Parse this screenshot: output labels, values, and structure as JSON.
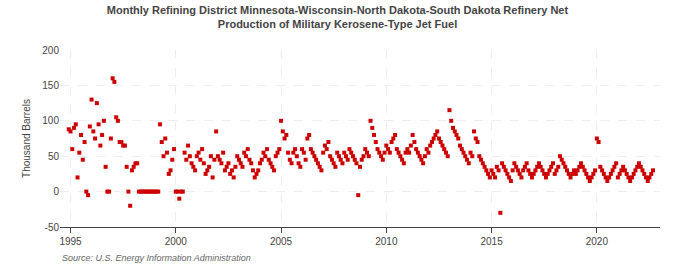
{
  "chart_data": {
    "type": "scatter",
    "title": "Monthly Refining District Minnesota-Wisconsin-North Dakota-South Dakota Refinery Net\nProduction of Military Kerosene-Type Jet Fuel",
    "ylabel": "Thousand Barrels",
    "annotations": [
      "Source: U.S. Energy Information Administration"
    ],
    "color": "#cc0000",
    "marker": "square",
    "grid": true,
    "xlim": [
      1994.5,
      2023.0
    ],
    "xticks": [
      1995,
      2000,
      2005,
      2010,
      2015,
      2020
    ],
    "ylim": [
      -50,
      200
    ],
    "yticks": [
      -50,
      0,
      50,
      100,
      150,
      200
    ],
    "x": [
      1994.917,
      1995.0,
      1995.083,
      1995.167,
      1995.25,
      1995.333,
      1995.417,
      1995.5,
      1995.583,
      1995.667,
      1995.75,
      1995.833,
      1995.917,
      1996.0,
      1996.083,
      1996.167,
      1996.25,
      1996.333,
      1996.417,
      1996.5,
      1996.583,
      1996.667,
      1996.75,
      1996.833,
      1996.917,
      1997.0,
      1997.083,
      1997.167,
      1997.25,
      1997.333,
      1997.417,
      1997.5,
      1997.583,
      1997.667,
      1997.75,
      1997.833,
      1997.917,
      1998.0,
      1998.083,
      1998.167,
      1998.25,
      1998.333,
      1998.417,
      1998.5,
      1998.583,
      1998.667,
      1998.75,
      1998.833,
      1998.917,
      1999.0,
      1999.083,
      1999.167,
      1999.25,
      1999.333,
      1999.417,
      1999.5,
      1999.583,
      1999.667,
      1999.75,
      1999.833,
      1999.917,
      2000.0,
      2000.083,
      2000.167,
      2000.25,
      2000.333,
      2000.417,
      2000.5,
      2000.583,
      2000.667,
      2000.75,
      2000.833,
      2000.917,
      2001.0,
      2001.083,
      2001.167,
      2001.25,
      2001.333,
      2001.417,
      2001.5,
      2001.583,
      2001.667,
      2001.75,
      2001.833,
      2001.917,
      2002.0,
      2002.083,
      2002.167,
      2002.25,
      2002.333,
      2002.417,
      2002.5,
      2002.583,
      2002.667,
      2002.75,
      2002.833,
      2002.917,
      2003.0,
      2003.083,
      2003.167,
      2003.25,
      2003.333,
      2003.417,
      2003.5,
      2003.583,
      2003.667,
      2003.75,
      2003.833,
      2003.917,
      2004.0,
      2004.083,
      2004.167,
      2004.25,
      2004.333,
      2004.417,
      2004.5,
      2004.583,
      2004.667,
      2004.75,
      2004.833,
      2004.917,
      2005.0,
      2005.083,
      2005.167,
      2005.25,
      2005.333,
      2005.417,
      2005.5,
      2005.583,
      2005.667,
      2005.75,
      2005.833,
      2005.917,
      2006.0,
      2006.083,
      2006.167,
      2006.25,
      2006.333,
      2006.417,
      2006.5,
      2006.583,
      2006.667,
      2006.75,
      2006.833,
      2006.917,
      2007.0,
      2007.083,
      2007.167,
      2007.25,
      2007.333,
      2007.417,
      2007.5,
      2007.583,
      2007.667,
      2007.75,
      2007.833,
      2007.917,
      2008.0,
      2008.083,
      2008.167,
      2008.25,
      2008.333,
      2008.417,
      2008.5,
      2008.583,
      2008.667,
      2008.75,
      2008.833,
      2008.917,
      2009.0,
      2009.083,
      2009.167,
      2009.25,
      2009.333,
      2009.417,
      2009.5,
      2009.583,
      2009.667,
      2009.75,
      2009.833,
      2009.917,
      2010.0,
      2010.083,
      2010.167,
      2010.25,
      2010.333,
      2010.417,
      2010.5,
      2010.583,
      2010.667,
      2010.75,
      2010.833,
      2010.917,
      2011.0,
      2011.083,
      2011.167,
      2011.25,
      2011.333,
      2011.417,
      2011.5,
      2011.583,
      2011.667,
      2011.75,
      2011.833,
      2011.917,
      2012.0,
      2012.083,
      2012.167,
      2012.25,
      2012.333,
      2012.417,
      2012.5,
      2012.583,
      2012.667,
      2012.75,
      2012.833,
      2012.917,
      2013.0,
      2013.083,
      2013.167,
      2013.25,
      2013.333,
      2013.417,
      2013.5,
      2013.583,
      2013.667,
      2013.75,
      2013.833,
      2013.917,
      2014.0,
      2014.083,
      2014.167,
      2014.25,
      2014.333,
      2014.417,
      2014.5,
      2014.583,
      2014.667,
      2014.75,
      2014.833,
      2014.917,
      2015.0,
      2015.083,
      2015.167,
      2015.25,
      2015.333,
      2015.417,
      2015.5,
      2015.583,
      2015.667,
      2015.75,
      2015.833,
      2015.917,
      2016.0,
      2016.083,
      2016.167,
      2016.25,
      2016.333,
      2016.417,
      2016.5,
      2016.583,
      2016.667,
      2016.75,
      2016.833,
      2016.917,
      2017.0,
      2017.083,
      2017.167,
      2017.25,
      2017.333,
      2017.417,
      2017.5,
      2017.583,
      2017.667,
      2017.75,
      2017.833,
      2017.917,
      2018.0,
      2018.083,
      2018.167,
      2018.25,
      2018.333,
      2018.417,
      2018.5,
      2018.583,
      2018.667,
      2018.75,
      2018.833,
      2018.917,
      2019.0,
      2019.083,
      2019.167,
      2019.25,
      2019.333,
      2019.417,
      2019.5,
      2019.583,
      2019.667,
      2019.75,
      2019.833,
      2019.917,
      2020.0,
      2020.083,
      2020.167,
      2020.25,
      2020.333,
      2020.417,
      2020.5,
      2020.583,
      2020.667,
      2020.75,
      2020.833,
      2020.917,
      2021.0,
      2021.083,
      2021.167,
      2021.25,
      2021.333,
      2021.417,
      2021.5,
      2021.583,
      2021.667,
      2021.75,
      2021.833,
      2021.917,
      2022.0,
      2022.083,
      2022.167,
      2022.25,
      2022.333,
      2022.417,
      2022.5,
      2022.583,
      2022.667
    ],
    "values": [
      88,
      85,
      60,
      90,
      95,
      20,
      55,
      80,
      45,
      70,
      0,
      -5,
      92,
      130,
      85,
      75,
      125,
      95,
      65,
      80,
      100,
      35,
      0,
      0,
      75,
      160,
      155,
      105,
      100,
      70,
      70,
      65,
      65,
      35,
      0,
      -20,
      30,
      35,
      40,
      40,
      0,
      0,
      0,
      0,
      0,
      0,
      0,
      0,
      0,
      0,
      0,
      0,
      95,
      70,
      50,
      75,
      55,
      25,
      30,
      45,
      60,
      0,
      0,
      -10,
      0,
      0,
      55,
      45,
      65,
      50,
      40,
      35,
      30,
      50,
      55,
      45,
      60,
      40,
      25,
      30,
      35,
      50,
      20,
      45,
      85,
      50,
      45,
      40,
      55,
      30,
      35,
      40,
      25,
      30,
      20,
      35,
      50,
      45,
      40,
      35,
      55,
      50,
      60,
      45,
      40,
      30,
      20,
      25,
      30,
      40,
      45,
      55,
      50,
      60,
      45,
      40,
      35,
      30,
      50,
      55,
      60,
      100,
      85,
      75,
      80,
      55,
      45,
      40,
      55,
      60,
      50,
      40,
      35,
      60,
      55,
      45,
      75,
      80,
      60,
      55,
      50,
      45,
      40,
      35,
      30,
      55,
      65,
      60,
      70,
      50,
      45,
      40,
      35,
      55,
      50,
      45,
      40,
      55,
      50,
      45,
      60,
      55,
      50,
      45,
      40,
      -5,
      35,
      45,
      50,
      60,
      55,
      50,
      100,
      90,
      80,
      70,
      60,
      55,
      50,
      45,
      55,
      65,
      60,
      55,
      70,
      75,
      80,
      60,
      55,
      50,
      45,
      40,
      55,
      60,
      55,
      65,
      80,
      70,
      60,
      55,
      50,
      45,
      40,
      50,
      60,
      55,
      65,
      70,
      75,
      80,
      85,
      75,
      70,
      65,
      60,
      55,
      50,
      115,
      100,
      90,
      85,
      80,
      75,
      65,
      60,
      55,
      50,
      45,
      40,
      55,
      50,
      85,
      75,
      70,
      50,
      45,
      40,
      35,
      30,
      25,
      20,
      30,
      25,
      20,
      35,
      30,
      -30,
      40,
      35,
      30,
      25,
      20,
      15,
      30,
      40,
      35,
      30,
      25,
      20,
      30,
      35,
      40,
      30,
      25,
      20,
      25,
      30,
      35,
      40,
      35,
      30,
      25,
      20,
      25,
      30,
      35,
      40,
      25,
      30,
      35,
      50,
      45,
      40,
      35,
      30,
      25,
      20,
      25,
      30,
      25,
      30,
      35,
      40,
      35,
      30,
      25,
      20,
      15,
      20,
      25,
      30,
      75,
      70,
      35,
      30,
      25,
      20,
      15,
      20,
      25,
      30,
      35,
      40,
      20,
      25,
      30,
      35,
      30,
      25,
      20,
      15,
      20,
      25,
      30,
      35,
      40,
      35,
      30,
      25,
      20,
      15,
      20,
      25,
      30
    ]
  }
}
